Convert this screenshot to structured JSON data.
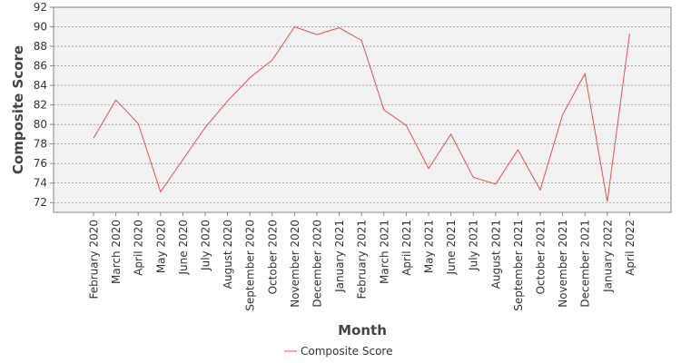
{
  "chart_data": {
    "type": "line",
    "title": "",
    "xlabel": "Month",
    "ylabel": "Composite Score",
    "ylim": [
      71,
      92
    ],
    "yticks": [
      72,
      74,
      76,
      78,
      80,
      82,
      84,
      86,
      88,
      90,
      92
    ],
    "grid": true,
    "legend_position": "bottom",
    "categories": [
      "February 2020",
      "March 2020",
      "April 2020",
      "May 2020",
      "June 2020",
      "July 2020",
      "August 2020",
      "September 2020",
      "October 2020",
      "November 2020",
      "December 2020",
      "January 2021",
      "February 2021",
      "March 2021",
      "April 2021",
      "May 2021",
      "June 2021",
      "July 2021",
      "August 2021",
      "September 2021",
      "October 2021",
      "November 2021",
      "December 2021",
      "January 2022",
      "April 2022"
    ],
    "series": [
      {
        "name": "Composite Score",
        "color": "#f05050",
        "values": [
          78.6,
          82.5,
          80.1,
          73.1,
          76.4,
          79.7,
          82.4,
          84.8,
          86.6,
          90.0,
          89.2,
          89.9,
          88.6,
          81.5,
          79.9,
          75.5,
          79.0,
          74.6,
          73.9,
          77.4,
          73.3,
          81.0,
          85.2,
          72.1,
          89.3
        ]
      }
    ]
  }
}
